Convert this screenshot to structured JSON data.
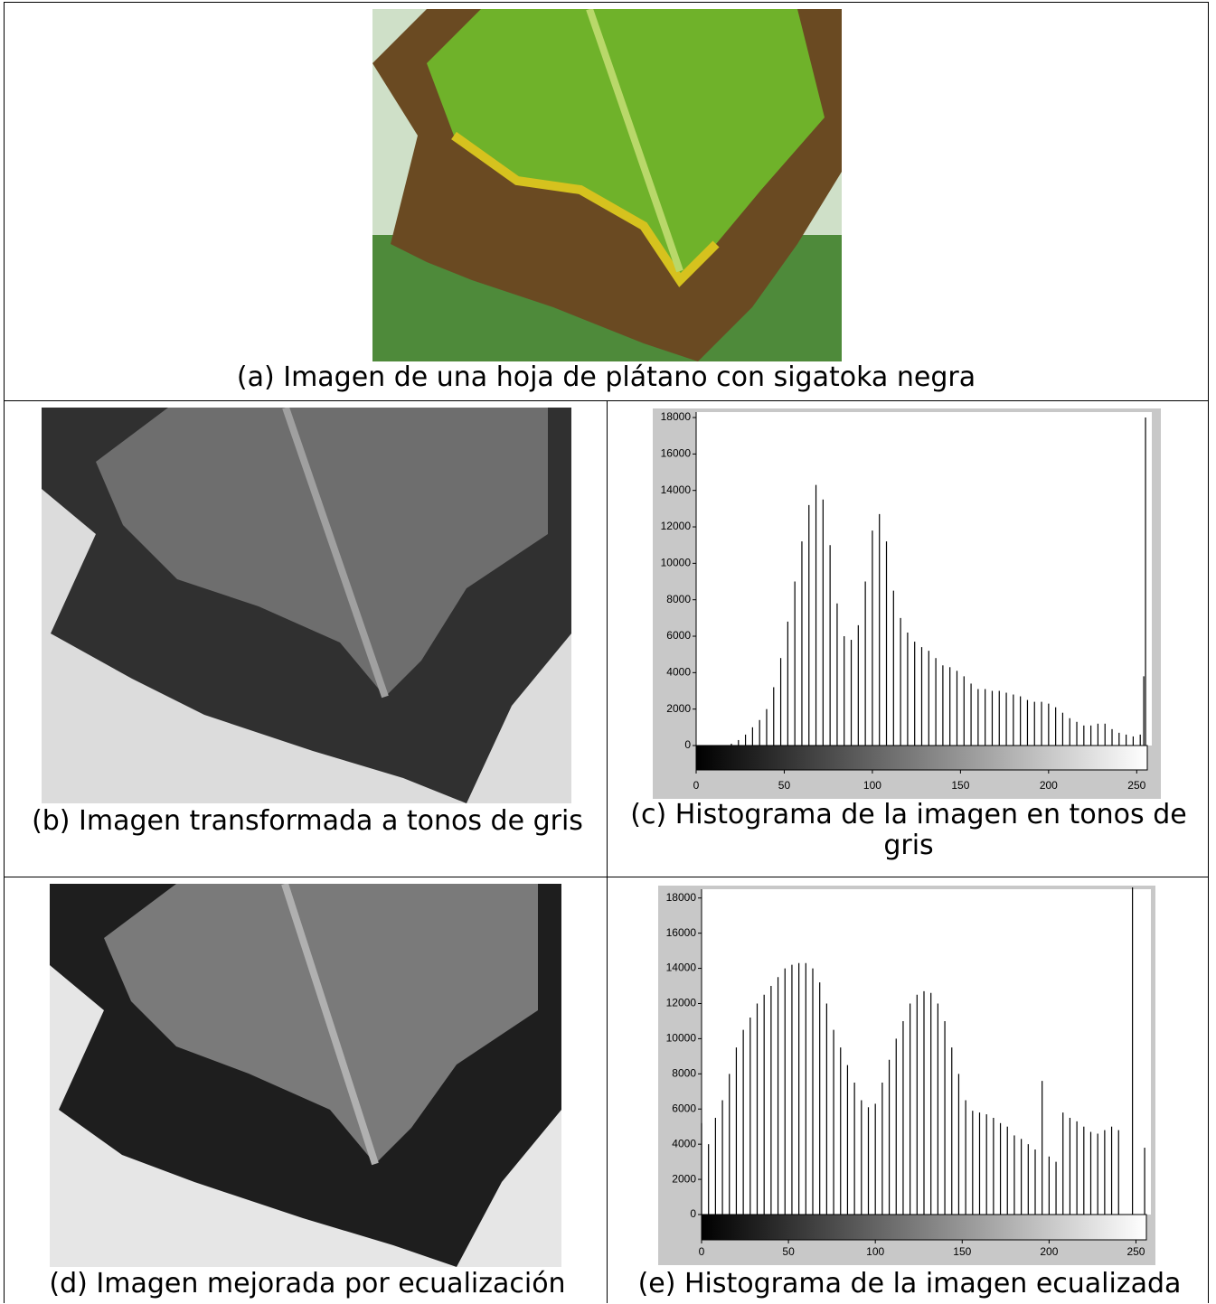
{
  "figure": {
    "a": "(a) Imagen de una hoja de plátano con sigatoka negra",
    "b": "(b) Imagen transformada a tonos de gris",
    "d": "(d) Imagen mejorada por ecualización"
  },
  "chart_data": [
    {
      "type": "bar",
      "caption": "(c) Histograma de la imagen en tonos de gris",
      "color": "#000000",
      "x": [
        0,
        4,
        8,
        12,
        16,
        20,
        24,
        28,
        32,
        36,
        40,
        44,
        48,
        52,
        56,
        60,
        64,
        68,
        72,
        76,
        80,
        84,
        88,
        92,
        96,
        100,
        104,
        108,
        112,
        116,
        120,
        124,
        128,
        132,
        136,
        140,
        144,
        148,
        152,
        156,
        160,
        164,
        168,
        172,
        176,
        180,
        184,
        188,
        192,
        196,
        200,
        204,
        208,
        212,
        216,
        220,
        224,
        228,
        232,
        236,
        240,
        244,
        248,
        252,
        254,
        255
      ],
      "values": [
        0,
        0,
        0,
        0,
        0,
        100,
        300,
        600,
        1000,
        1400,
        2000,
        3200,
        4800,
        6800,
        9000,
        11200,
        13200,
        14300,
        13500,
        11000,
        7800,
        6000,
        5800,
        6600,
        9000,
        11800,
        12700,
        11200,
        8500,
        7000,
        6200,
        5700,
        5400,
        5200,
        4800,
        4400,
        4300,
        4100,
        3800,
        3400,
        3100,
        3100,
        3000,
        3000,
        2900,
        2800,
        2700,
        2500,
        2400,
        2400,
        2300,
        2100,
        1800,
        1500,
        1300,
        1100,
        1100,
        1200,
        1200,
        900,
        700,
        600,
        500,
        600,
        3800,
        18000
      ],
      "xlim": [
        0,
        256
      ],
      "ylim": [
        0,
        18300
      ],
      "xticks": [
        0,
        50,
        100,
        150,
        200,
        250
      ],
      "yticks": [
        0,
        2000,
        4000,
        6000,
        8000,
        10000,
        12000,
        14000,
        16000,
        18000
      ]
    },
    {
      "type": "bar",
      "caption": "(e) Histograma de la imagen ecualizada",
      "color": "#000000",
      "x": [
        0,
        4,
        8,
        12,
        16,
        20,
        24,
        28,
        32,
        36,
        40,
        44,
        48,
        52,
        56,
        60,
        64,
        68,
        72,
        76,
        80,
        84,
        88,
        92,
        96,
        100,
        104,
        108,
        112,
        116,
        120,
        124,
        128,
        132,
        136,
        140,
        144,
        148,
        152,
        156,
        160,
        164,
        168,
        172,
        176,
        180,
        184,
        188,
        192,
        196,
        200,
        204,
        208,
        212,
        216,
        220,
        224,
        228,
        232,
        236,
        240,
        248,
        255
      ],
      "values": [
        5200,
        4000,
        5500,
        6500,
        8000,
        9500,
        10500,
        11200,
        12000,
        12500,
        13000,
        13500,
        14000,
        14200,
        14300,
        14300,
        14000,
        13200,
        12000,
        10500,
        9500,
        8500,
        7500,
        6500,
        6100,
        6300,
        7500,
        8800,
        10000,
        11000,
        12000,
        12500,
        12700,
        12600,
        12000,
        11000,
        9500,
        8000,
        6500,
        5900,
        5800,
        5700,
        5500,
        5200,
        5000,
        4500,
        4300,
        4000,
        3700,
        7600,
        3300,
        3000,
        5800,
        5500,
        5300,
        5000,
        4700,
        4600,
        4800,
        5000,
        4800,
        18600,
        3800
      ],
      "xlim": [
        0,
        256
      ],
      "ylim": [
        0,
        18500
      ],
      "xticks": [
        0,
        50,
        100,
        150,
        200,
        250
      ],
      "yticks": [
        0,
        2000,
        4000,
        6000,
        8000,
        10000,
        12000,
        14000,
        16000,
        18000
      ]
    }
  ]
}
